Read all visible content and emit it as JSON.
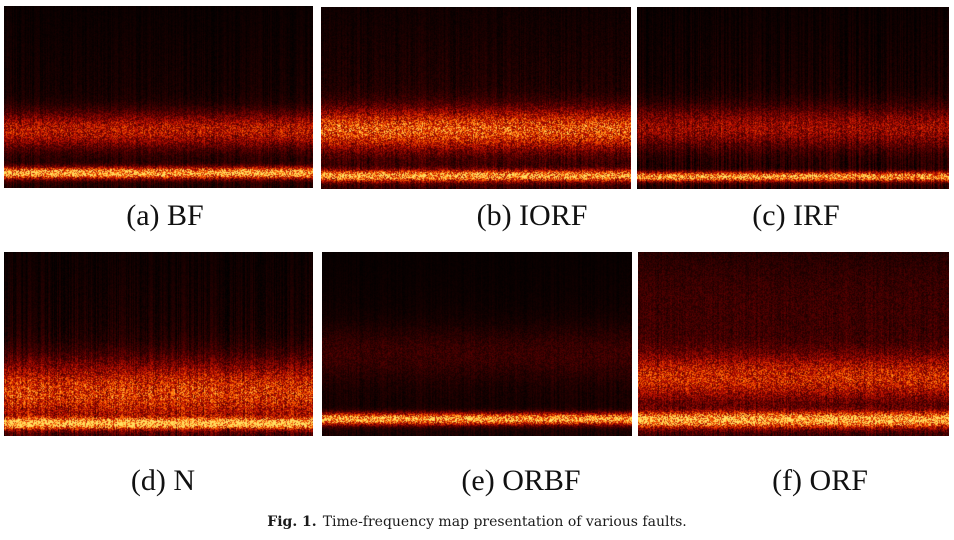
{
  "figure": {
    "panels": [
      {
        "label": "(a) BF",
        "style": "bf"
      },
      {
        "label": "(b) IORF",
        "style": "iorf"
      },
      {
        "label": "(c) IRF",
        "style": "irf"
      },
      {
        "label": "(d) N",
        "style": "n"
      },
      {
        "label": "(e) ORBF",
        "style": "orbf"
      },
      {
        "label": "(f) ORF",
        "style": "orf"
      }
    ],
    "colormap": [
      "#000000",
      "#5a0000",
      "#c01000",
      "#ff6a00",
      "#ffe060"
    ],
    "caption_label": "Fig. 1.",
    "caption_text": "Time-frequency map presentation of various faults."
  }
}
